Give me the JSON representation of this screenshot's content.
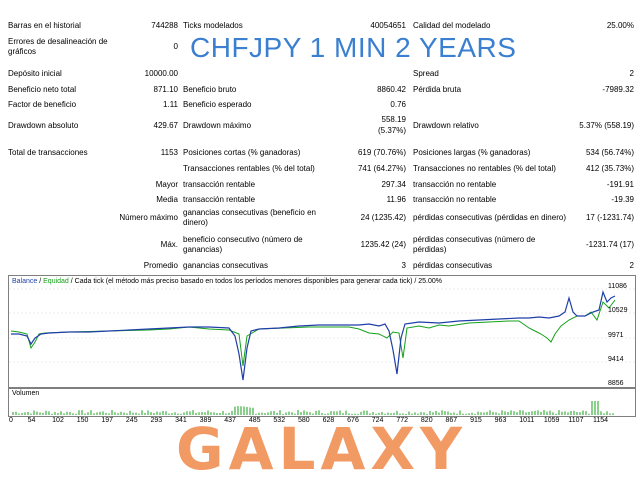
{
  "headline": "CHFJPY 1 MIN 2 YEARS",
  "watermark": "GALAXY",
  "stats": {
    "barras_label": "Barras en el historial",
    "barras_value": "744288",
    "ticks_label": "Ticks modelados",
    "ticks_value": "40054651",
    "calidad_label": "Calidad del modelado",
    "calidad_value": "25.00%",
    "errores_label_1": "Errores de desalineación de",
    "errores_label_2": "gráficos",
    "errores_value": "0",
    "deposito_label": "Depósito inicial",
    "deposito_value": "10000.00",
    "spread_label": "Spread",
    "spread_value": "2",
    "beneficio_neto_label": "Beneficio neto total",
    "beneficio_neto_value": "871.10",
    "beneficio_bruto_label": "Beneficio bruto",
    "beneficio_bruto_value": "8860.42",
    "perdida_bruta_label": "Pérdida bruta",
    "perdida_bruta_value": "-7989.32",
    "factor_label": "Factor de beneficio",
    "factor_value": "1.11",
    "esperado_label": "Beneficio esperado",
    "esperado_value": "0.76",
    "dd_abs_label": "Drawdown absoluto",
    "dd_abs_value": "429.67",
    "dd_max_label": "Drawdown máximo",
    "dd_max_value_1": "558.19",
    "dd_max_value_2": "(5.37%)",
    "dd_rel_label": "Drawdown relativo",
    "dd_rel_value": "5.37% (558.19)",
    "total_label": "Total de transacciones",
    "total_value": "1153",
    "cortas_label": "Posiciones cortas (% ganadoras)",
    "cortas_value": "619 (70.76%)",
    "largas_label": "Posiciones largas (% ganadoras)",
    "largas_value": "534 (56.74%)",
    "rentables_label": "Transacciones rentables (% del total)",
    "rentables_value": "741 (64.27%)",
    "no_rentables_label": "Transacciones no rentables (% del total)",
    "no_rentables_value": "412 (35.73%)",
    "mayor_label": "Mayor",
    "mayor_tr_label": "transacción rentable",
    "mayor_tr_value": "297.34",
    "mayor_nr_label": "transacción no rentable",
    "mayor_nr_value": "-191.91",
    "media_label": "Media",
    "media_tr_label": "transacción rentable",
    "media_tr_value": "11.96",
    "media_nr_label": "transacción no rentable",
    "media_nr_value": "-19.39",
    "nmax_label": "Número máximo",
    "nmax_g_label_1": "ganancias consecutivas (beneficio en",
    "nmax_g_label_2": "dinero)",
    "nmax_g_value": "24 (1235.42)",
    "nmax_p_label": "pérdidas consecutivas (pérdidas en dinero)",
    "nmax_p_value": "17 (-1231.74)",
    "max_label": "Máx.",
    "max_b_label_1": "beneficio consecutivo (número de",
    "max_b_label_2": "ganancias)",
    "max_b_value": "1235.42 (24)",
    "max_p_label_1": "pérdidas consecutivas (número de",
    "max_p_label_2": "pérdidas)",
    "max_p_value": "-1231.74 (17)",
    "prom_label": "Promedio",
    "prom_g_label": "ganancias consecutivas",
    "prom_g_value": "3",
    "prom_p_label": "pérdidas consecutivas",
    "prom_p_value": "2"
  },
  "chart": {
    "legend_balance": "Balance",
    "legend_sep": " / ",
    "legend_equity": "Equidad",
    "legend_rest": " / Cada tick (el método más preciso basado en todos los períodos menores disponibles para generar cada tick) / 25.00%",
    "volume_label": "Volumen",
    "colors": {
      "balance": "#1f3fa8",
      "equity": "#15a01a",
      "volume": "#15a01a"
    },
    "y_ticks": [
      "11086",
      "10529",
      "9971",
      "9414",
      "8856"
    ],
    "x_ticks": [
      "0",
      "54",
      "102",
      "150",
      "197",
      "245",
      "293",
      "341",
      "389",
      "437",
      "485",
      "532",
      "580",
      "628",
      "676",
      "724",
      "772",
      "820",
      "867",
      "915",
      "963",
      "1011",
      "1059",
      "1107",
      "1154"
    ]
  }
}
